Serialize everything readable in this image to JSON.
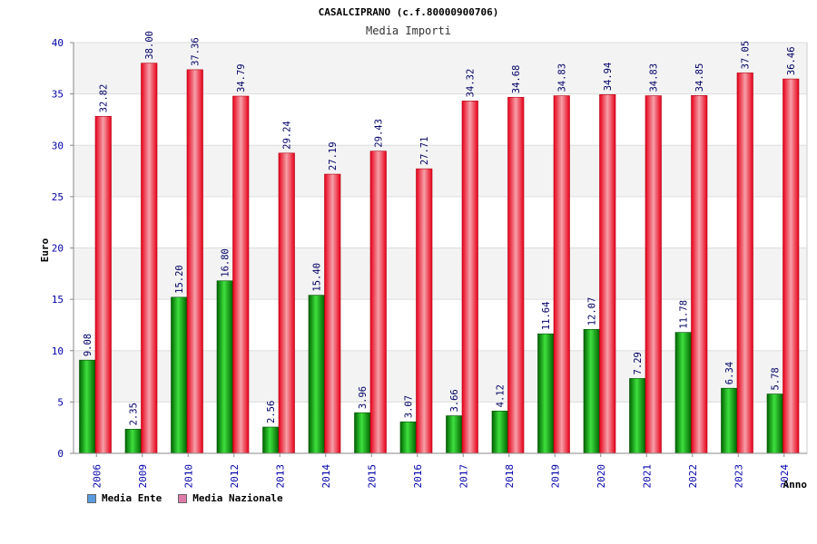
{
  "chart_data": {
    "type": "bar",
    "title": "CASALCIPRANO (c.f.80000900706)",
    "subtitle": "Media Importi",
    "xlabel": "Anno",
    "ylabel": "Euro",
    "ylim": [
      0,
      40
    ],
    "yticks": [
      "0",
      "5",
      "10",
      "15",
      "20",
      "25",
      "30",
      "35",
      "40"
    ],
    "grid": true,
    "legend_position": "bottom-left",
    "categories": [
      "2006",
      "2009",
      "2010",
      "2012",
      "2013",
      "2014",
      "2015",
      "2016",
      "2017",
      "2018",
      "2019",
      "2020",
      "2021",
      "2022",
      "2023",
      "2024"
    ],
    "series": [
      {
        "name": "Media Ente",
        "color": "#00aa00",
        "legend_color": "#5a9be0",
        "values": [
          9.08,
          2.35,
          15.2,
          16.8,
          2.56,
          15.4,
          3.96,
          3.07,
          3.66,
          4.12,
          11.64,
          12.07,
          7.29,
          11.78,
          6.34,
          5.78
        ],
        "labels": [
          "9.08",
          "2.35",
          "15.20",
          "16.80",
          "2.56",
          "15.40",
          "3.96",
          "3.07",
          "3.66",
          "4.12",
          "11.64",
          "12.07",
          "7.29",
          "11.78",
          "6.34",
          "5.78"
        ]
      },
      {
        "name": "Media Nazionale",
        "color": "#ee1122",
        "legend_color": "#e07aa8",
        "values": [
          32.82,
          38.0,
          37.36,
          34.79,
          29.24,
          27.19,
          29.43,
          27.71,
          34.32,
          34.68,
          34.83,
          34.94,
          34.83,
          34.85,
          37.05,
          36.46
        ],
        "labels": [
          "32.82",
          "38.00",
          "37.36",
          "34.79",
          "29.24",
          "27.19",
          "29.43",
          "27.71",
          "34.32",
          "34.68",
          "34.83",
          "34.94",
          "34.83",
          "34.85",
          "37.05",
          "36.46"
        ]
      }
    ]
  }
}
